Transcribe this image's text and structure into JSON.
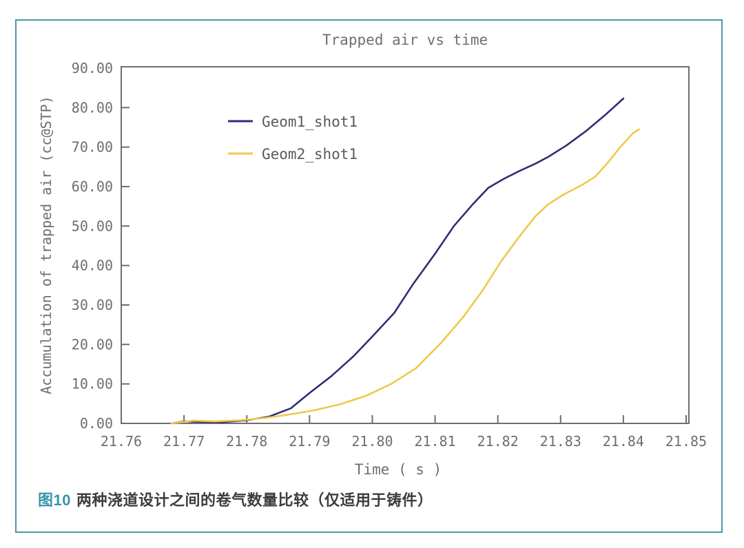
{
  "figure": {
    "border_color": "#4a96ab",
    "caption_label": "图10",
    "caption_label_color": "#3a93a9",
    "caption_text": "两种浇道设计之间的卷气数量比较（仅适用于铸件）"
  },
  "chart_data": {
    "type": "line",
    "title": "Trapped air vs time",
    "xlabel": "Time ( s )",
    "ylabel": "Accumulation of trapped air (cc@STP)",
    "xlim": [
      21.76,
      21.85
    ],
    "ylim": [
      0,
      90
    ],
    "grid": false,
    "legend_position": "upper-left-inside",
    "axis_color": "#6e6e6e",
    "text_color": "#6e6e6e",
    "x_tick_labels": [
      "21.76",
      "21.77",
      "21.78",
      "21.79",
      "21.80",
      "21.81",
      "21.82",
      "21.83",
      "21.84",
      "21.85"
    ],
    "x_tick_values": [
      21.76,
      21.77,
      21.78,
      21.79,
      21.8,
      21.81,
      21.82,
      21.83,
      21.84,
      21.85
    ],
    "y_tick_labels": [
      "0.00",
      "10.00",
      "20.00",
      "30.00",
      "40.00",
      "50.00",
      "60.00",
      "70.00",
      "80.00",
      "90.00"
    ],
    "y_tick_values": [
      0,
      10,
      20,
      30,
      40,
      50,
      60,
      70,
      80,
      90
    ],
    "series": [
      {
        "name": "Geom1_shot1",
        "color": "#2e2d78",
        "points": [
          [
            21.768,
            0
          ],
          [
            21.77,
            0.5
          ],
          [
            21.7725,
            0.4
          ],
          [
            21.776,
            0.3
          ],
          [
            21.78,
            0.8
          ],
          [
            21.7835,
            1.7
          ],
          [
            21.787,
            3.8
          ],
          [
            21.79,
            7.7
          ],
          [
            21.7935,
            12.0
          ],
          [
            21.797,
            17.0
          ],
          [
            21.8,
            22.0
          ],
          [
            21.8035,
            28.0
          ],
          [
            21.8065,
            35.3
          ],
          [
            21.81,
            43.0
          ],
          [
            21.813,
            50.0
          ],
          [
            21.816,
            55.5
          ],
          [
            21.8185,
            59.7
          ],
          [
            21.821,
            62.0
          ],
          [
            21.8235,
            64.0
          ],
          [
            21.826,
            65.8
          ],
          [
            21.828,
            67.5
          ],
          [
            21.831,
            70.5
          ],
          [
            21.834,
            74.0
          ],
          [
            21.837,
            78.0
          ],
          [
            21.84,
            82.3
          ]
        ]
      },
      {
        "name": "Geom2_shot1",
        "color": "#eec94b",
        "points": [
          [
            21.768,
            0
          ],
          [
            21.7715,
            0.7
          ],
          [
            21.775,
            0.5
          ],
          [
            21.779,
            0.8
          ],
          [
            21.783,
            1.4
          ],
          [
            21.787,
            2.3
          ],
          [
            21.791,
            3.4
          ],
          [
            21.795,
            4.9
          ],
          [
            21.799,
            7.0
          ],
          [
            21.803,
            10.0
          ],
          [
            21.807,
            14.0
          ],
          [
            21.811,
            20.5
          ],
          [
            21.8145,
            27.0
          ],
          [
            21.8175,
            33.5
          ],
          [
            21.8205,
            41.0
          ],
          [
            21.8235,
            47.5
          ],
          [
            21.826,
            52.5
          ],
          [
            21.828,
            55.5
          ],
          [
            21.8305,
            58.0
          ],
          [
            21.8335,
            60.5
          ],
          [
            21.8355,
            62.5
          ],
          [
            21.8375,
            66.0
          ],
          [
            21.8395,
            70.0
          ],
          [
            21.8415,
            73.5
          ],
          [
            21.8425,
            74.5
          ]
        ]
      }
    ]
  }
}
